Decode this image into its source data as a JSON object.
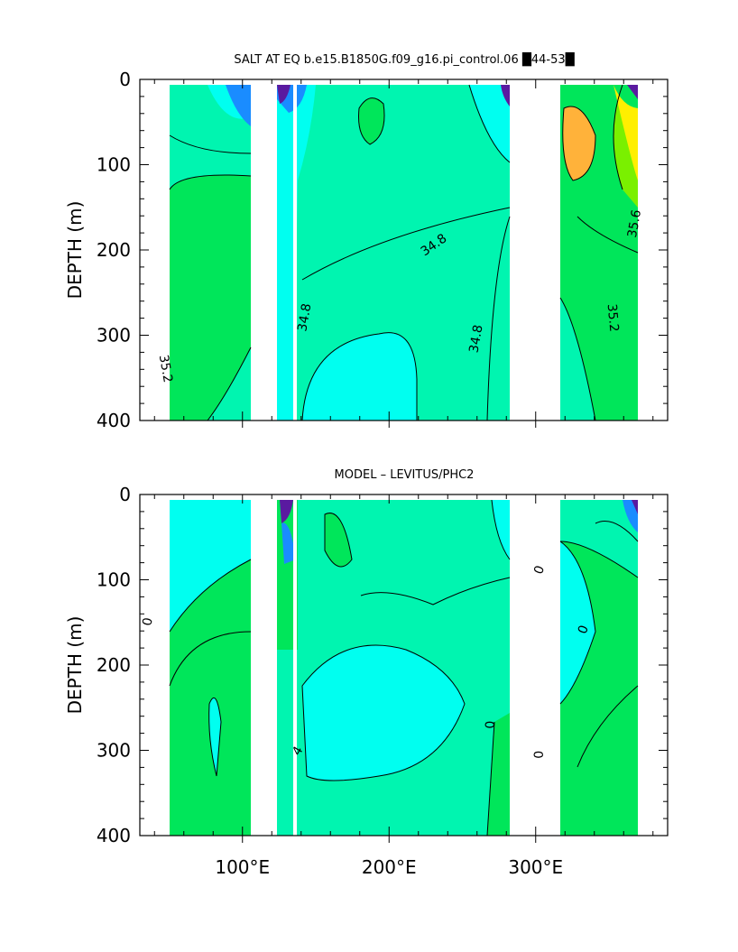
{
  "colors": {
    "cyan": "#00FFF0",
    "aqua_green": "#00F5B0",
    "green": "#00E65A",
    "bright_green": "#00F000",
    "lime": "#7AF000",
    "yellow": "#FFEF00",
    "orange": "#FFB23A",
    "blue": "#1A8CFF",
    "purple": "#5A1AA0",
    "land": "#FFFFFF",
    "line": "#000000"
  },
  "chart_data": [
    {
      "type": "heatmap",
      "title": "SALT AT EQ b.e15.B1850G.f09_g16.pi_control.06 ▆44-53▆",
      "title_text": "SALT AT EQ b.e15.B1850G.f09_g16.pi_control.06 █44-53█",
      "xlabel": "",
      "ylabel": "DEPTH (m)",
      "xlim": [
        30,
        390
      ],
      "ylim": [
        400,
        0
      ],
      "x_ticks": [
        "100°E",
        "200°E",
        "300°E"
      ],
      "x_tick_values": [
        100,
        200,
        300
      ],
      "y_ticks": [
        "0",
        "100",
        "200",
        "300",
        "400"
      ],
      "y_tick_values": [
        0,
        100,
        200,
        300,
        400
      ],
      "show_x_tick_labels": false,
      "contour_labels": [
        {
          "text": "34.8",
          "x": 232,
          "y": 198,
          "rot": -35
        },
        {
          "text": "34.8",
          "x": 145,
          "y": 280,
          "rot": -80
        },
        {
          "text": "34.8",
          "x": 262,
          "y": 305,
          "rot": -80
        },
        {
          "text": "35.2",
          "x": 45,
          "y": 340,
          "rot": 80
        },
        {
          "text": "35.6",
          "x": 370,
          "y": 170,
          "rot": -80
        },
        {
          "text": "35.2",
          "x": 350,
          "y": 280,
          "rot": 85
        }
      ]
    },
    {
      "type": "heatmap",
      "title": "MODEL – LEVITUS/PHC2",
      "xlabel": "",
      "ylabel": "DEPTH (m)",
      "xlim": [
        30,
        390
      ],
      "ylim": [
        400,
        0
      ],
      "x_ticks": [
        "100°E",
        "200°E",
        "300°E"
      ],
      "x_tick_values": [
        100,
        200,
        300
      ],
      "y_ticks": [
        "0",
        "100",
        "200",
        "300",
        "400"
      ],
      "y_tick_values": [
        0,
        100,
        200,
        300,
        400
      ],
      "show_x_tick_labels": true,
      "contour_labels": [
        {
          "text": "0",
          "x": 38,
          "y": 150,
          "rot": -80
        },
        {
          "text": "0",
          "x": 305,
          "y": 90,
          "rot": -70
        },
        {
          "text": "0",
          "x": 335,
          "y": 160,
          "rot": -70
        },
        {
          "text": "0",
          "x": 272,
          "y": 270,
          "rot": -90
        },
        {
          "text": "0",
          "x": 305,
          "y": 305,
          "rot": -90
        },
        {
          "text": "4",
          "x": 140,
          "y": 303,
          "rot": -60
        }
      ]
    }
  ]
}
